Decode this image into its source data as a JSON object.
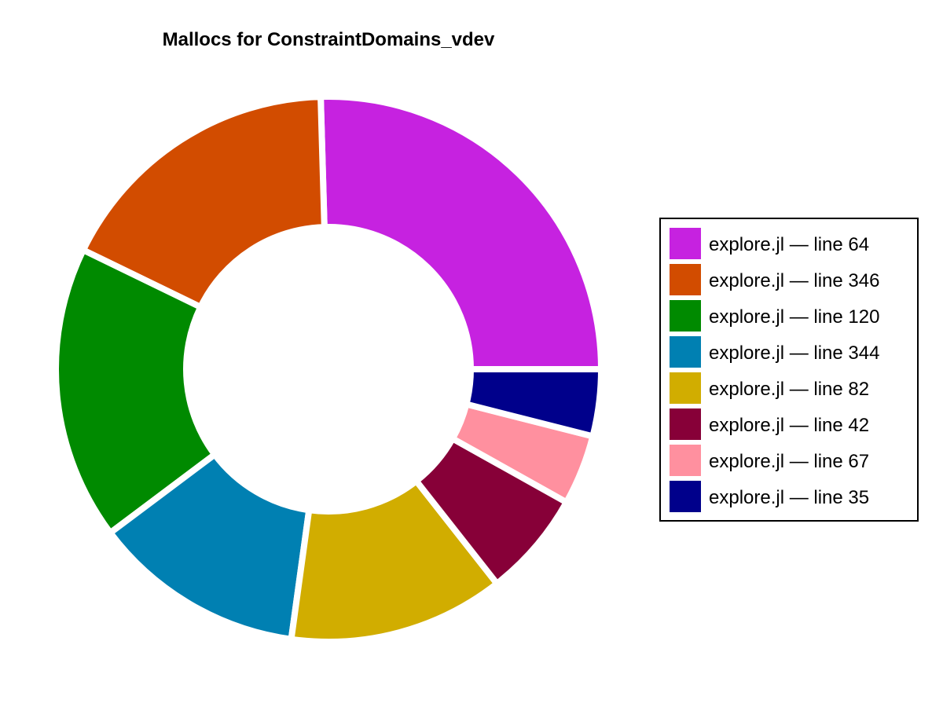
{
  "chart_data": {
    "type": "pie",
    "title": "Mallocs for ConstraintDomains_vdev",
    "donut": true,
    "legend_position": "right",
    "categories": [
      "explore.jl — line 64",
      "explore.jl — line 346",
      "explore.jl — line 120",
      "explore.jl — line 344",
      "explore.jl — line 82",
      "explore.jl — line 42",
      "explore.jl — line 67",
      "explore.jl — line 35"
    ],
    "values": [
      25.1,
      17.1,
      17.2,
      12.4,
      12.6,
      6.2,
      4.1,
      3.9
    ],
    "colors": [
      "#c622e0",
      "#d24c00",
      "#008a00",
      "#0080b2",
      "#d1ad00",
      "#870038",
      "#ff909f",
      "#00008b"
    ]
  }
}
